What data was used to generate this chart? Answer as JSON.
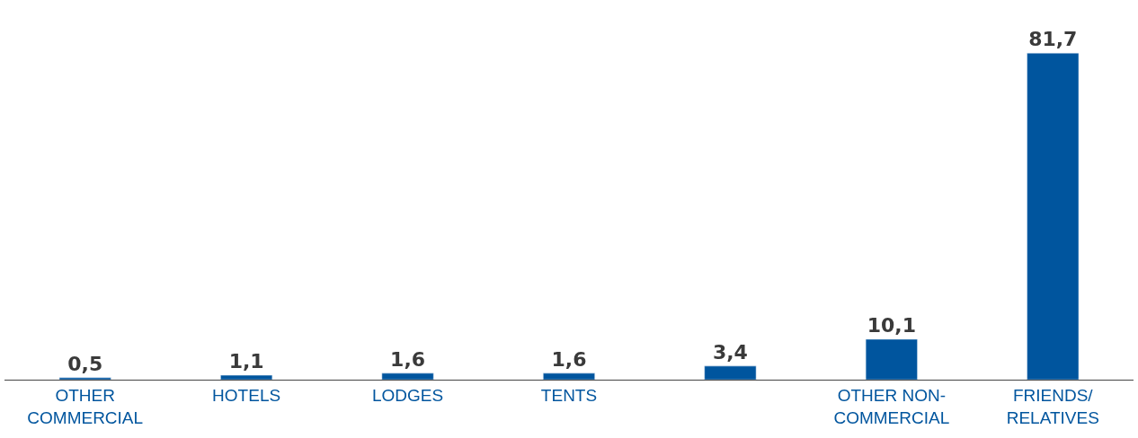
{
  "chart_data": {
    "type": "bar",
    "categories": [
      "OTHER COMMERCIAL",
      "HOTELS",
      "LODGES",
      "TENTS",
      null,
      "OTHER NON-COMMERCIAL",
      "FRIENDS/RELATIVES"
    ],
    "values": [
      0.5,
      1.1,
      1.6,
      1.6,
      3.4,
      10.1,
      81.7
    ],
    "value_labels": [
      "0,5",
      "1,1",
      "1,6",
      "1,6",
      "3,4",
      "10,1",
      "81,7"
    ],
    "color": "#00559e"
  }
}
